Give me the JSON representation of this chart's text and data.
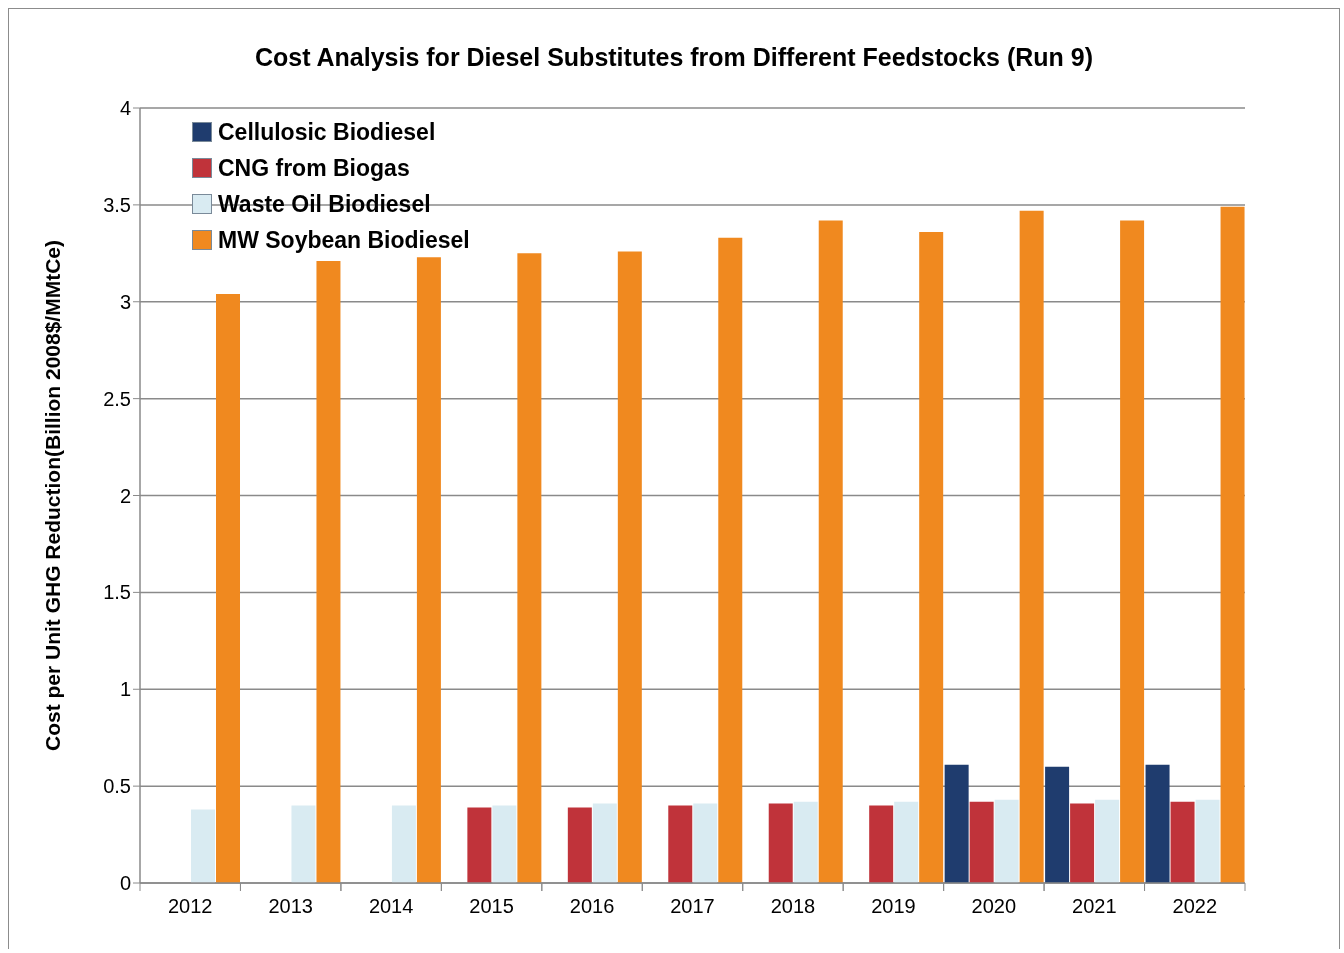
{
  "chart_data": {
    "type": "bar",
    "title": "Cost Analysis for Diesel Substitutes from Different Feedstocks (Run 9)",
    "ylabel": "Cost per Unit GHG Reduction(Billion 2008$/MMtCe)",
    "categories": [
      "2012",
      "2013",
      "2014",
      "2015",
      "2016",
      "2017",
      "2018",
      "2019",
      "2020",
      "2021",
      "2022"
    ],
    "series": [
      {
        "name": "Cellulosic Biodiesel",
        "color": "#1f3c6e",
        "values": [
          null,
          null,
          null,
          null,
          null,
          null,
          null,
          null,
          0.61,
          0.6,
          0.61
        ]
      },
      {
        "name": "CNG from Biogas",
        "color": "#c0333a",
        "values": [
          null,
          null,
          null,
          0.39,
          0.39,
          0.4,
          0.41,
          0.4,
          0.42,
          0.41,
          0.42
        ]
      },
      {
        "name": "Waste Oil Biodiesel",
        "color": "#d9ebf2",
        "values": [
          0.38,
          0.4,
          0.4,
          0.4,
          0.41,
          0.41,
          0.42,
          0.42,
          0.43,
          0.43,
          0.43
        ]
      },
      {
        "name": "MW Soybean Biodiesel",
        "color": "#f0891f",
        "values": [
          3.04,
          3.21,
          3.23,
          3.25,
          3.26,
          3.33,
          3.42,
          3.36,
          3.47,
          3.42,
          3.49
        ]
      }
    ],
    "ylim": [
      0,
      4
    ],
    "yticks": [
      0,
      0.5,
      1,
      1.5,
      2,
      2.5,
      3,
      3.5,
      4
    ],
    "grid": "y",
    "legend": "top left"
  }
}
